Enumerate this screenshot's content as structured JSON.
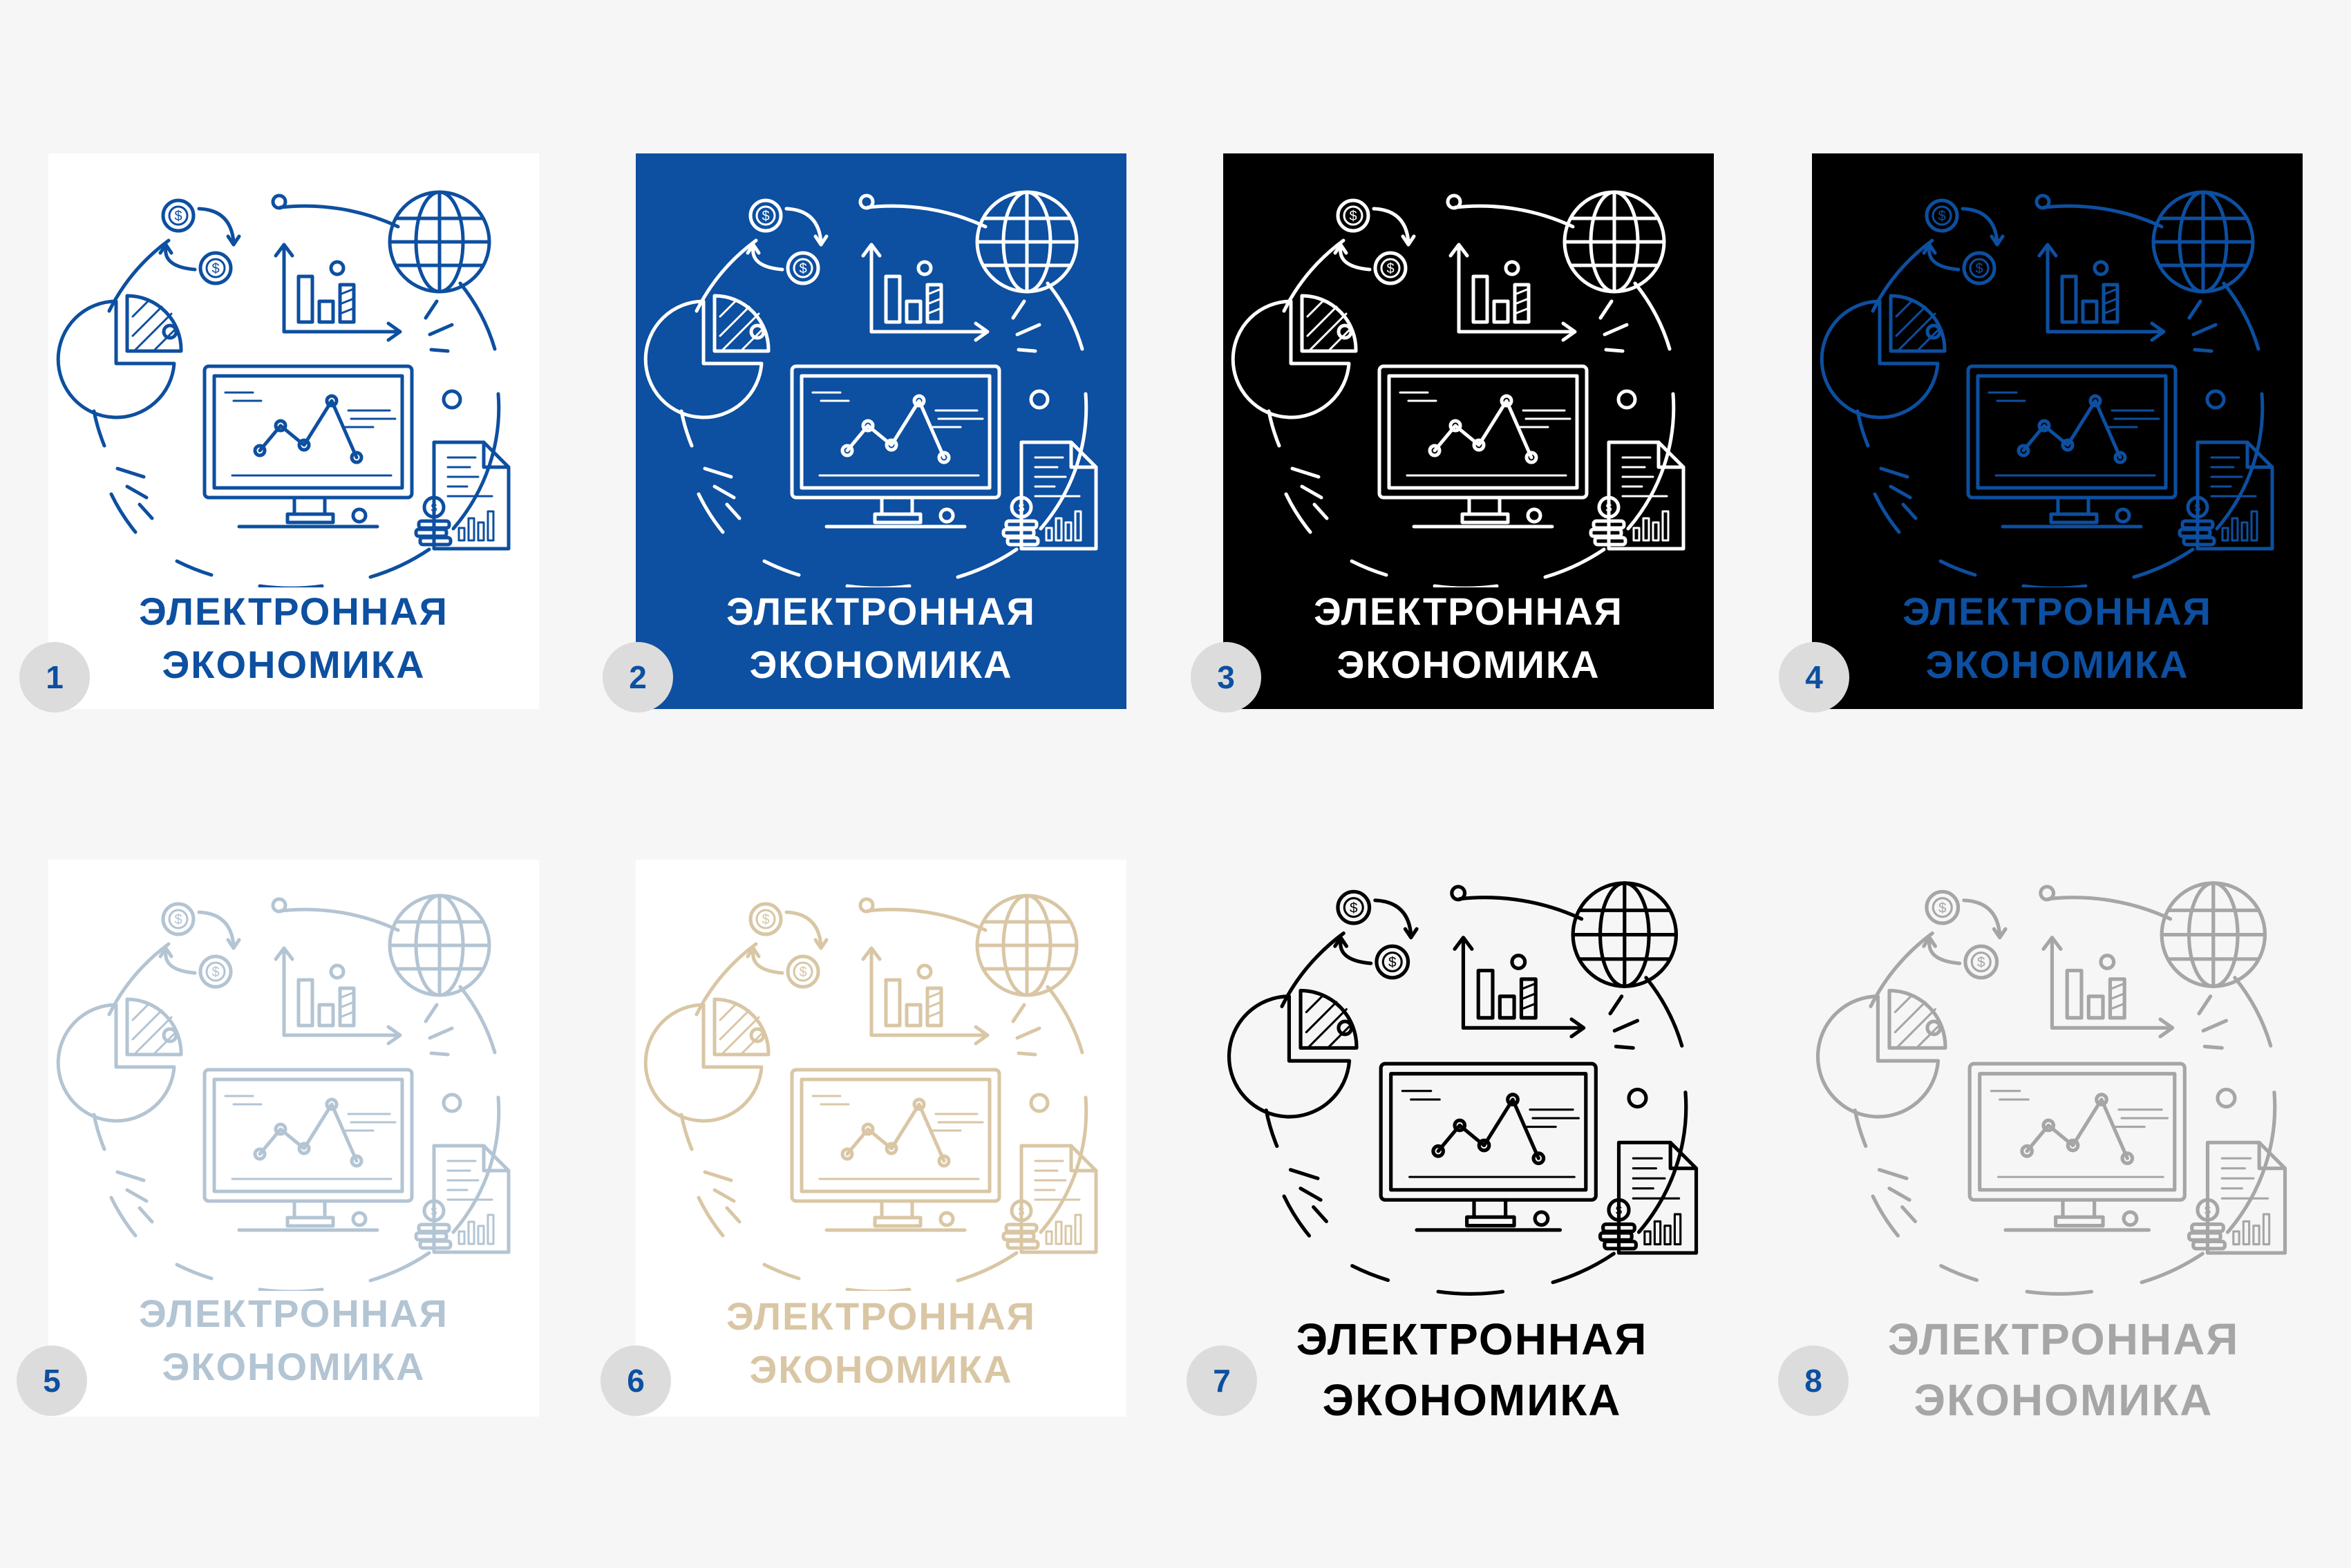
{
  "caption": {
    "line1": "ЭЛЕКТРОННАЯ",
    "line2": "ЭКОНОМИКА"
  },
  "icons": [
    "coins-exchange-icon",
    "globe-icon",
    "bar-chart-growth-icon",
    "pie-chart-icon",
    "monitor-line-chart-icon",
    "document-report-icon",
    "coin-stack-icon"
  ],
  "variants": [
    {
      "number": "1",
      "background": "#ffffff",
      "ink": "#0d4fa0",
      "badge_color": "#0d4fa0"
    },
    {
      "number": "2",
      "background": "#0d4fa0",
      "ink": "#ffffff",
      "badge_color": "#0d4fa0"
    },
    {
      "number": "3",
      "background": "#000000",
      "ink": "#ffffff",
      "badge_color": "#0d4fa0"
    },
    {
      "number": "4",
      "background": "#000000",
      "ink": "#0d4fa0",
      "badge_color": "#0d4fa0"
    },
    {
      "number": "5",
      "background": "#ffffff",
      "ink": "#b3c4d3",
      "badge_color": "#0d4fa0"
    },
    {
      "number": "6",
      "background": "#ffffff",
      "ink": "#d9c6a4",
      "badge_color": "#0d4fa0"
    },
    {
      "number": "7",
      "background": "transparent",
      "ink": "#000000",
      "badge_color": "#0d4fa0"
    },
    {
      "number": "8",
      "background": "transparent",
      "ink": "#a6a6a6",
      "badge_color": "#0d4fa0"
    }
  ]
}
